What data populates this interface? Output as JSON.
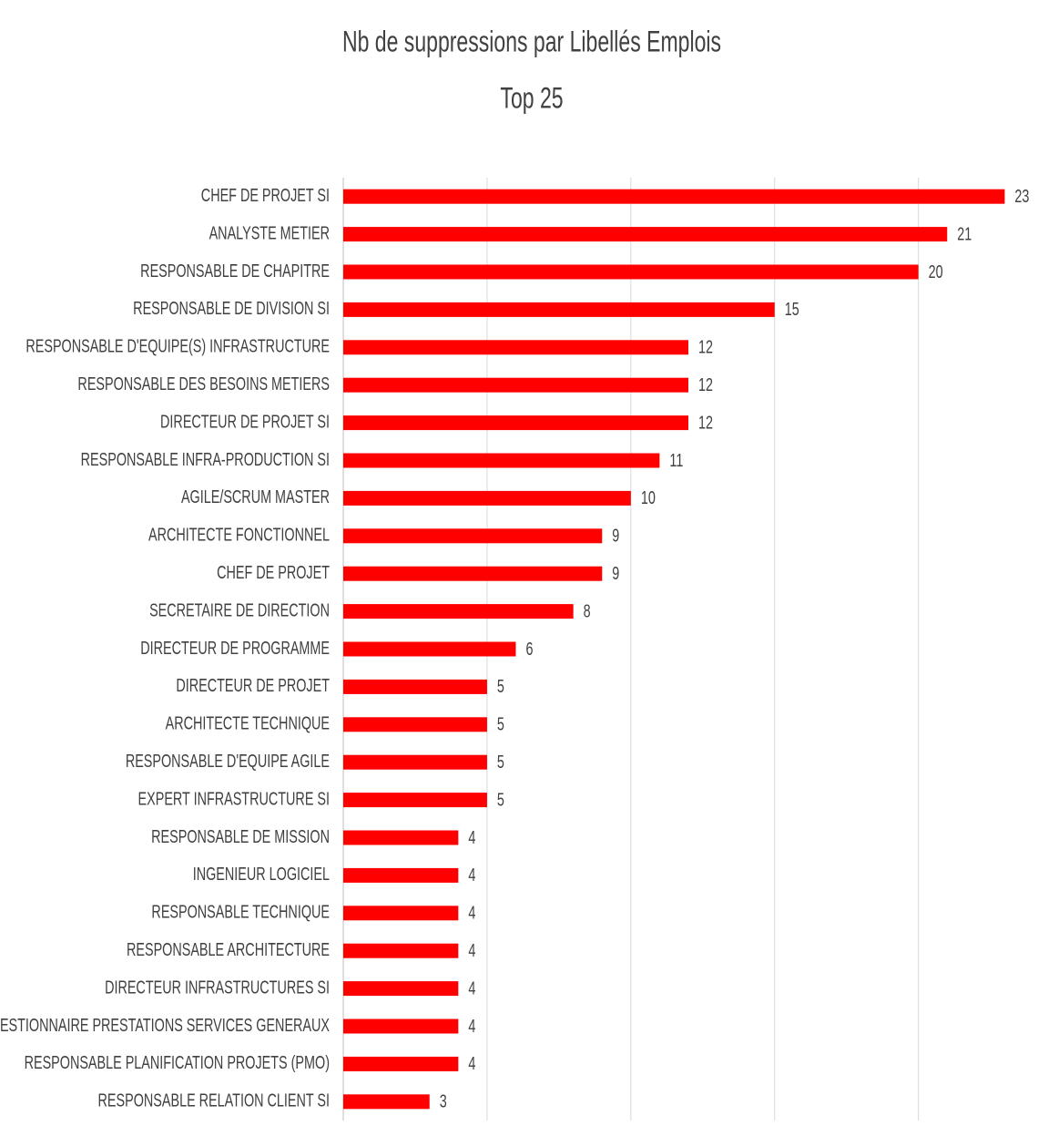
{
  "chart_data": {
    "type": "barh",
    "title": "Nb de suppressions par Libellés Emplois",
    "subtitle": "Top 25",
    "categories": [
      "CHEF DE PROJET SI",
      "ANALYSTE METIER",
      "RESPONSABLE DE CHAPITRE",
      "RESPONSABLE DE DIVISION SI",
      "RESPONSABLE D'EQUIPE(S) INFRASTRUCTURE",
      "RESPONSABLE DES BESOINS METIERS",
      "DIRECTEUR DE PROJET SI",
      "RESPONSABLE INFRA-PRODUCTION SI",
      "AGILE/SCRUM MASTER",
      "ARCHITECTE FONCTIONNEL",
      "CHEF DE PROJET",
      "SECRETAIRE DE DIRECTION",
      "DIRECTEUR DE PROGRAMME",
      "DIRECTEUR DE PROJET",
      "ARCHITECTE TECHNIQUE",
      "RESPONSABLE D'EQUIPE AGILE",
      "EXPERT INFRASTRUCTURE SI",
      "RESPONSABLE DE MISSION",
      "INGENIEUR LOGICIEL",
      "RESPONSABLE TECHNIQUE",
      "RESPONSABLE ARCHITECTURE",
      "DIRECTEUR INFRASTRUCTURES SI",
      "GESTIONNAIRE PRESTATIONS SERVICES GENERAUX",
      "RESPONSABLE PLANIFICATION PROJETS (PMO)",
      "RESPONSABLE RELATION CLIENT SI"
    ],
    "values": [
      23,
      21,
      20,
      15,
      12,
      12,
      12,
      11,
      10,
      9,
      9,
      8,
      6,
      5,
      5,
      5,
      5,
      4,
      4,
      4,
      4,
      4,
      4,
      4,
      3
    ],
    "color": "#ff0000",
    "xlim": [
      0,
      24
    ],
    "xticks": [
      0,
      5,
      10,
      15,
      20
    ],
    "grid": true,
    "tick_labels": false,
    "data_labels": true
  }
}
